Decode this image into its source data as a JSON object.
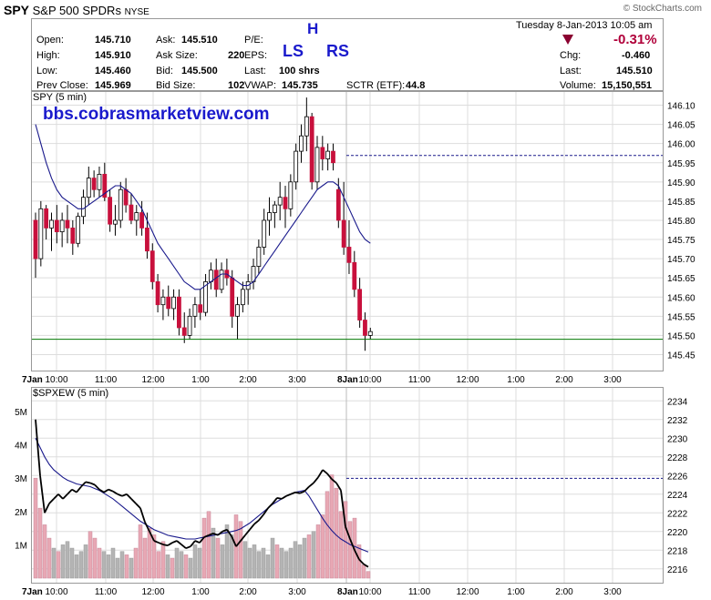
{
  "header": {
    "ticker": "SPY",
    "name": "S&P 500 SPDRs",
    "exchange": "NYSE",
    "logo": "© StockCharts.com",
    "date": "Tuesday  8-Jan-2013  10:05 am",
    "change_pct": "-0.31%",
    "stats": [
      {
        "label": "Open:",
        "value": "145.710"
      },
      {
        "label": "High:",
        "value": "145.910"
      },
      {
        "label": "Low:",
        "value": "145.460"
      },
      {
        "label": "Prev Close:",
        "value": "145.969"
      },
      {
        "label": "Ask:",
        "value": "145.510"
      },
      {
        "label": "Ask Size:",
        "value": "220"
      },
      {
        "label": "Bid:",
        "value": "145.500"
      },
      {
        "label": "Bid Size:",
        "value": "102"
      },
      {
        "label": "P/E:",
        "value": ""
      },
      {
        "label": "EPS:",
        "value": ""
      },
      {
        "label": "Last:",
        "value": "100 shrs"
      },
      {
        "label": "VWAP:",
        "value": "145.735"
      },
      {
        "label": "SCTR (ETF):",
        "value": "44.8"
      },
      {
        "label": "Chg:",
        "value": "-0.460"
      },
      {
        "label": "Last:",
        "value": "145.510"
      },
      {
        "label": "Volume:",
        "value": "15,150,551"
      }
    ],
    "annotations": {
      "h": "H",
      "ls": "LS",
      "rs": "RS"
    },
    "watermark": "bbs.cobrasmarketview.com"
  },
  "colors": {
    "up": "#ffffff",
    "down": "#c8103c",
    "ma": "#1a1a8c",
    "support": "#007700",
    "dashed": "#1a1a8c",
    "grid": "#dddddd"
  },
  "chart_data": [
    {
      "type": "candlestick",
      "title": "SPY (5 min)",
      "ylim": [
        145.425,
        146.125
      ],
      "y_ticks": [
        "146.10",
        "146.05",
        "146.00",
        "145.95",
        "145.90",
        "145.85",
        "145.80",
        "145.75",
        "145.70",
        "145.65",
        "145.60",
        "145.55",
        "145.50",
        "145.45"
      ],
      "x_ticks": [
        "7Jan",
        "10:00",
        "11:00",
        "12:00",
        "1:00",
        "2:00",
        "3:00",
        "8Jan",
        "10:00",
        "11:00",
        "12:00",
        "1:00",
        "2:00",
        "3:00"
      ],
      "support_level": 145.49,
      "prev_close_level": 145.969,
      "ohlc": [
        [
          145.8,
          145.82,
          145.65,
          145.7
        ],
        [
          145.7,
          145.85,
          145.68,
          145.83
        ],
        [
          145.83,
          145.84,
          145.75,
          145.78
        ],
        [
          145.78,
          145.82,
          145.72,
          145.8
        ],
        [
          145.8,
          145.84,
          145.74,
          145.77
        ],
        [
          145.77,
          145.82,
          145.73,
          145.8
        ],
        [
          145.8,
          145.84,
          145.74,
          145.78
        ],
        [
          145.78,
          145.8,
          145.71,
          145.74
        ],
        [
          145.74,
          145.82,
          145.73,
          145.81
        ],
        [
          145.81,
          145.88,
          145.79,
          145.86
        ],
        [
          145.86,
          145.94,
          145.84,
          145.91
        ],
        [
          145.91,
          145.93,
          145.86,
          145.88
        ],
        [
          145.88,
          145.94,
          145.86,
          145.92
        ],
        [
          145.92,
          145.95,
          145.85,
          145.86
        ],
        [
          145.86,
          145.88,
          145.77,
          145.79
        ],
        [
          145.79,
          145.84,
          145.76,
          145.8
        ],
        [
          145.8,
          145.9,
          145.78,
          145.88
        ],
        [
          145.88,
          145.91,
          145.82,
          145.84
        ],
        [
          145.84,
          145.87,
          145.79,
          145.8
        ],
        [
          145.8,
          145.84,
          145.76,
          145.82
        ],
        [
          145.82,
          145.85,
          145.76,
          145.78
        ],
        [
          145.78,
          145.82,
          145.7,
          145.72
        ],
        [
          145.72,
          145.74,
          145.62,
          145.64
        ],
        [
          145.64,
          145.66,
          145.56,
          145.58
        ],
        [
          145.58,
          145.62,
          145.54,
          145.6
        ],
        [
          145.6,
          145.63,
          145.55,
          145.57
        ],
        [
          145.57,
          145.62,
          145.54,
          145.6
        ],
        [
          145.6,
          145.62,
          145.5,
          145.52
        ],
        [
          145.52,
          145.56,
          145.48,
          145.5
        ],
        [
          145.5,
          145.57,
          145.49,
          145.55
        ],
        [
          145.55,
          145.6,
          145.52,
          145.58
        ],
        [
          145.58,
          145.62,
          145.54,
          145.56
        ],
        [
          145.56,
          145.66,
          145.55,
          145.64
        ],
        [
          145.64,
          145.69,
          145.62,
          145.67
        ],
        [
          145.67,
          145.7,
          145.6,
          145.62
        ],
        [
          145.62,
          145.69,
          145.61,
          145.67
        ],
        [
          145.67,
          145.7,
          145.63,
          145.65
        ],
        [
          145.65,
          145.67,
          145.52,
          145.55
        ],
        [
          145.55,
          145.6,
          145.49,
          145.58
        ],
        [
          145.58,
          145.64,
          145.56,
          145.62
        ],
        [
          145.62,
          145.66,
          145.58,
          145.64
        ],
        [
          145.64,
          145.7,
          145.62,
          145.68
        ],
        [
          145.68,
          145.75,
          145.66,
          145.73
        ],
        [
          145.73,
          145.83,
          145.71,
          145.8
        ],
        [
          145.8,
          145.86,
          145.76,
          145.82
        ],
        [
          145.82,
          145.85,
          145.78,
          145.84
        ],
        [
          145.84,
          145.9,
          145.8,
          145.86
        ],
        [
          145.86,
          145.89,
          145.78,
          145.83
        ],
        [
          145.83,
          145.92,
          145.81,
          145.9
        ],
        [
          145.9,
          146.0,
          145.88,
          145.98
        ],
        [
          145.98,
          146.05,
          145.95,
          146.02
        ],
        [
          146.02,
          146.12,
          145.98,
          146.07
        ],
        [
          146.07,
          146.08,
          145.88,
          145.9
        ],
        [
          145.9,
          146.02,
          145.88,
          145.99
        ],
        [
          145.99,
          146.02,
          145.93,
          145.96
        ],
        [
          145.96,
          146.0,
          145.93,
          145.98
        ],
        [
          145.98,
          146.0,
          145.93,
          145.95
        ],
        [
          145.88,
          145.91,
          145.78,
          145.8
        ],
        [
          145.8,
          145.9,
          145.71,
          145.73
        ],
        [
          145.73,
          145.8,
          145.66,
          145.69
        ],
        [
          145.69,
          145.72,
          145.6,
          145.62
        ],
        [
          145.62,
          145.65,
          145.52,
          145.54
        ],
        [
          145.54,
          145.56,
          145.46,
          145.5
        ],
        [
          145.5,
          145.52,
          145.49,
          145.51
        ]
      ],
      "ma": [
        146.05,
        146.0,
        145.95,
        145.91,
        145.88,
        145.86,
        145.85,
        145.84,
        145.83,
        145.83,
        145.84,
        145.85,
        145.86,
        145.87,
        145.88,
        145.89,
        145.89,
        145.88,
        145.87,
        145.85,
        145.83,
        145.8,
        145.77,
        145.74,
        145.72,
        145.7,
        145.68,
        145.66,
        145.64,
        145.63,
        145.62,
        145.62,
        145.63,
        145.64,
        145.65,
        145.66,
        145.66,
        145.65,
        145.64,
        145.63,
        145.63,
        145.64,
        145.66,
        145.68,
        145.7,
        145.72,
        145.74,
        145.76,
        145.78,
        145.8,
        145.82,
        145.84,
        145.86,
        145.88,
        145.89,
        145.9,
        145.9,
        145.89,
        145.86,
        145.83,
        145.8,
        145.77,
        145.75,
        145.74
      ]
    },
    {
      "type": "line",
      "title": "$SPXEW (5 min)",
      "y_ticks": [
        "2234",
        "2232",
        "2230",
        "2228",
        "2226",
        "2224",
        "2222",
        "2220",
        "2218",
        "2216"
      ],
      "ylim": [
        2215,
        2235
      ],
      "volume_ticks": [
        "5M",
        "4M",
        "3M",
        "2M",
        "1M"
      ],
      "volume_lim": [
        0,
        5.6
      ],
      "dashed_level": 2225.7,
      "close": [
        2232,
        2226,
        2222,
        2223,
        2223.5,
        2224,
        2223.5,
        2224,
        2224.5,
        2224.2,
        2224.8,
        2225.3,
        2225.2,
        2225,
        2224.5,
        2224.2,
        2224.5,
        2224.3,
        2224,
        2223.8,
        2224,
        2223.5,
        2223,
        2222.5,
        2221,
        2220,
        2219,
        2218.8,
        2218.6,
        2218.5,
        2218.8,
        2219,
        2218.6,
        2218.2,
        2218.4,
        2219,
        2218.8,
        2219.4,
        2219.6,
        2219.8,
        2219.6,
        2220,
        2220.2,
        2219.5,
        2218.4,
        2219,
        2219.6,
        2220.2,
        2220.8,
        2221.2,
        2221.8,
        2222.5,
        2223,
        2223.6,
        2223.5,
        2223.8,
        2224,
        2224.2,
        2224.1,
        2224.3,
        2224.8,
        2225.2,
        2225.8,
        2226.6,
        2226.2,
        2225.6,
        2225.2,
        2224.4,
        2220.5,
        2219.2,
        2218,
        2217,
        2216.5,
        2216.2
      ],
      "ma": [
        2230,
        2229,
        2228,
        2227.2,
        2226.6,
        2226.2,
        2225.8,
        2225.5,
        2225.3,
        2225.1,
        2225,
        2224.9,
        2224.8,
        2224.6,
        2224.4,
        2224.1,
        2223.8,
        2223.5,
        2223.1,
        2222.7,
        2222.3,
        2221.9,
        2221.5,
        2221.1,
        2220.8,
        2220.5,
        2220.2,
        2220,
        2219.8,
        2219.6,
        2219.5,
        2219.4,
        2219.3,
        2219.2,
        2219.2,
        2219.2,
        2219.3,
        2219.4,
        2219.5,
        2219.6,
        2219.7,
        2219.8,
        2219.9,
        2220,
        2220.1,
        2220.3,
        2220.6,
        2220.9,
        2221.3,
        2221.7,
        2222.1,
        2222.5,
        2222.9,
        2223.2,
        2223.5,
        2223.8,
        2224,
        2224.2,
        2224.3,
        2224.4,
        2223.8,
        2223,
        2222.2,
        2221.4,
        2220.7,
        2220.1,
        2219.6,
        2219.2,
        2218.9,
        2218.6,
        2218.4,
        2218.2,
        2218,
        2217.8
      ],
      "volume": [
        3.0,
        2.1,
        1.6,
        1.2,
        0.9,
        0.8,
        1.0,
        1.1,
        0.9,
        0.7,
        0.8,
        1.0,
        1.4,
        1.2,
        0.9,
        0.8,
        0.7,
        0.9,
        0.6,
        0.8,
        0.7,
        0.6,
        0.9,
        1.6,
        1.2,
        1.5,
        1.3,
        0.8,
        1.1,
        0.7,
        0.6,
        0.9,
        0.8,
        0.7,
        0.6,
        1.0,
        0.9,
        1.8,
        2.0,
        1.5,
        1.2,
        1.0,
        1.6,
        1.3,
        1.9,
        1.7,
        1.1,
        0.9,
        1.0,
        0.8,
        0.9,
        0.7,
        1.2,
        1.0,
        0.9,
        0.8,
        0.9,
        1.1,
        1.0,
        1.2,
        1.3,
        1.4,
        1.6,
        1.9,
        2.6,
        3.1,
        2.7,
        2.0,
        2.3,
        1.7,
        1.8,
        1.0,
        0.4,
        0.2
      ],
      "vol_down": [
        0,
        1,
        2,
        3,
        5,
        12,
        13,
        14,
        20,
        22,
        23,
        24,
        25,
        26,
        27,
        28,
        30,
        33,
        37,
        38,
        40,
        44,
        45,
        53,
        60,
        62,
        63,
        64,
        65,
        66,
        67,
        68,
        69,
        70,
        71,
        72,
        73
      ]
    }
  ]
}
